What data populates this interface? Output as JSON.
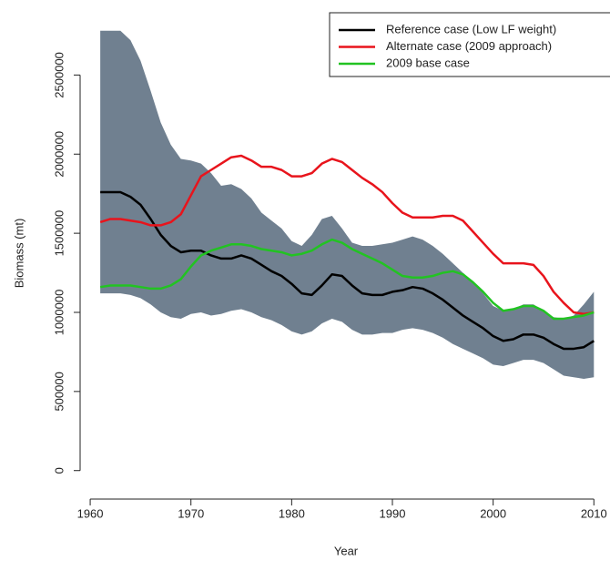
{
  "chart_data": {
    "type": "line",
    "xlabel": "Year",
    "ylabel": "Biomass (mt)",
    "x": [
      1961,
      1962,
      1963,
      1964,
      1965,
      1966,
      1967,
      1968,
      1969,
      1970,
      1971,
      1972,
      1973,
      1974,
      1975,
      1976,
      1977,
      1978,
      1979,
      1980,
      1981,
      1982,
      1983,
      1984,
      1985,
      1986,
      1987,
      1988,
      1989,
      1990,
      1991,
      1992,
      1993,
      1994,
      1995,
      1996,
      1997,
      1998,
      1999,
      2000,
      2001,
      2002,
      2003,
      2004,
      2005,
      2006,
      2007,
      2008,
      2009,
      2010
    ],
    "band": {
      "color": "#708090",
      "upper": [
        2780000,
        2780000,
        2780000,
        2720000,
        2590000,
        2400000,
        2200000,
        2060000,
        1970000,
        1960000,
        1940000,
        1880000,
        1800000,
        1810000,
        1780000,
        1720000,
        1630000,
        1580000,
        1530000,
        1450000,
        1420000,
        1490000,
        1590000,
        1610000,
        1530000,
        1440000,
        1420000,
        1420000,
        1430000,
        1440000,
        1460000,
        1480000,
        1460000,
        1420000,
        1370000,
        1310000,
        1250000,
        1190000,
        1120000,
        1040000,
        1010000,
        1020000,
        1050000,
        1050000,
        1010000,
        970000,
        960000,
        980000,
        1050000,
        1130000
      ],
      "lower": [
        1120000,
        1120000,
        1120000,
        1110000,
        1090000,
        1050000,
        1000000,
        970000,
        960000,
        990000,
        1000000,
        980000,
        990000,
        1010000,
        1020000,
        1000000,
        970000,
        950000,
        920000,
        880000,
        860000,
        880000,
        930000,
        960000,
        940000,
        890000,
        860000,
        860000,
        870000,
        870000,
        890000,
        900000,
        890000,
        870000,
        840000,
        800000,
        770000,
        740000,
        710000,
        670000,
        660000,
        680000,
        700000,
        700000,
        680000,
        640000,
        600000,
        590000,
        580000,
        590000
      ]
    },
    "series": [
      {
        "name": "Reference case (Low LF weight)",
        "color": "#000000",
        "values": [
          1760000,
          1760000,
          1760000,
          1730000,
          1680000,
          1590000,
          1490000,
          1420000,
          1380000,
          1390000,
          1390000,
          1360000,
          1340000,
          1340000,
          1360000,
          1340000,
          1300000,
          1260000,
          1230000,
          1180000,
          1120000,
          1110000,
          1170000,
          1240000,
          1230000,
          1170000,
          1120000,
          1110000,
          1110000,
          1130000,
          1140000,
          1160000,
          1150000,
          1120000,
          1080000,
          1030000,
          980000,
          940000,
          900000,
          850000,
          820000,
          830000,
          860000,
          860000,
          840000,
          800000,
          770000,
          770000,
          780000,
          820000
        ]
      },
      {
        "name": "Alternate case (2009 approach)",
        "color": "#e8141c",
        "values": [
          1570000,
          1590000,
          1590000,
          1580000,
          1570000,
          1550000,
          1550000,
          1570000,
          1620000,
          1740000,
          1860000,
          1900000,
          1940000,
          1980000,
          1990000,
          1960000,
          1920000,
          1920000,
          1900000,
          1860000,
          1860000,
          1880000,
          1940000,
          1970000,
          1950000,
          1900000,
          1850000,
          1810000,
          1760000,
          1690000,
          1630000,
          1600000,
          1600000,
          1600000,
          1610000,
          1610000,
          1580000,
          1510000,
          1440000,
          1370000,
          1310000,
          1310000,
          1310000,
          1300000,
          1230000,
          1130000,
          1060000,
          1000000,
          990000,
          1000000
        ]
      },
      {
        "name": "2009 base case",
        "color": "#22c322",
        "values": [
          1160000,
          1170000,
          1170000,
          1170000,
          1160000,
          1150000,
          1150000,
          1170000,
          1210000,
          1290000,
          1360000,
          1390000,
          1410000,
          1430000,
          1430000,
          1420000,
          1400000,
          1390000,
          1380000,
          1360000,
          1370000,
          1390000,
          1430000,
          1460000,
          1440000,
          1400000,
          1370000,
          1340000,
          1310000,
          1270000,
          1230000,
          1220000,
          1220000,
          1230000,
          1250000,
          1260000,
          1240000,
          1190000,
          1130000,
          1060000,
          1010000,
          1020000,
          1040000,
          1040000,
          1010000,
          960000,
          960000,
          970000,
          980000,
          1000000
        ]
      }
    ],
    "xlim": [
      1959,
      2011.6
    ],
    "xticks": [
      1960,
      1970,
      1980,
      1990,
      2000,
      2010
    ],
    "ylim": [
      -180000,
      2790000
    ],
    "yticks": [
      0,
      500000,
      1000000,
      1500000,
      2000000,
      2500000
    ],
    "legend": "top-right"
  }
}
